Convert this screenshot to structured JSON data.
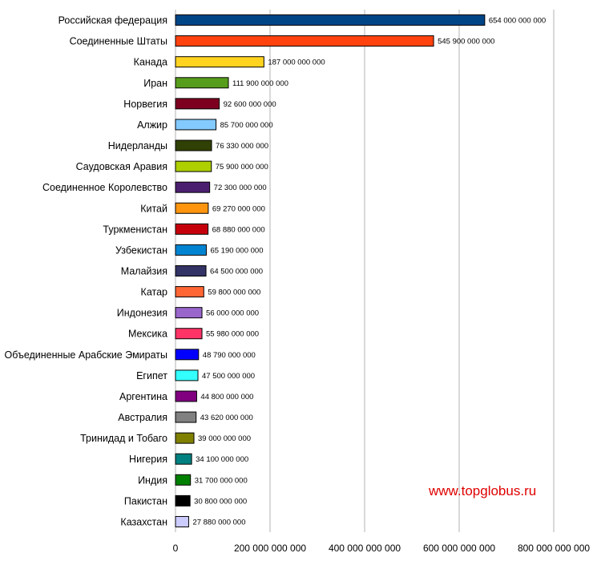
{
  "chart_data": {
    "type": "bar",
    "orientation": "horizontal",
    "title": "",
    "xlabel": "",
    "ylabel": "",
    "xlim": [
      0,
      800000000000
    ],
    "grid": "vertical",
    "legend": "none",
    "x_ticks": [
      "0",
      "200 000 000 000",
      "400 000 000 000",
      "600 000 000 000",
      "800 000 000 000"
    ],
    "categories": [
      "Российская федерация",
      "Соединенные Штаты",
      "Канада",
      "Иран",
      "Норвегия",
      "Алжир",
      "Нидерланды",
      "Саудовская Аравия",
      "Соединенное Королевство",
      "Китай",
      "Туркменистан",
      "Узбекистан",
      "Малайзия",
      "Катар",
      "Индонезия",
      "Мексика",
      "Объединенные Арабские Эмираты",
      "Египет",
      "Аргентина",
      "Австралия",
      "Тринидад и Тобаго",
      "Нигерия",
      "Индия",
      "Пакистан",
      "Казахстан"
    ],
    "values": [
      654000000000,
      545900000000,
      187000000000,
      111900000000,
      92600000000,
      85700000000,
      76330000000,
      75900000000,
      72300000000,
      69270000000,
      68880000000,
      65190000000,
      64500000000,
      59800000000,
      56000000000,
      55980000000,
      48790000000,
      47500000000,
      44800000000,
      43620000000,
      39000000000,
      34100000000,
      31700000000,
      30800000000,
      27880000000
    ],
    "value_labels": [
      "654 000 000 000",
      "545 900 000 000",
      "187 000 000 000",
      "111 900 000 000",
      "92 600 000 000",
      "85 700 000 000",
      "76 330 000 000",
      "75 900 000 000",
      "72 300 000 000",
      "69 270 000 000",
      "68 880 000 000",
      "65 190 000 000",
      "64 500 000 000",
      "59 800 000 000",
      "56 000 000 000",
      "55 980 000 000",
      "48 790 000 000",
      "47 500 000 000",
      "44 800 000 000",
      "43 620 000 000",
      "39 000 000 000",
      "34 100 000 000",
      "31 700 000 000",
      "30 800 000 000",
      "27 880 000 000"
    ],
    "colors": [
      "#004586",
      "#ff420e",
      "#ffd320",
      "#579d1c",
      "#7e0021",
      "#83caff",
      "#314004",
      "#aecf00",
      "#4b1f6f",
      "#ff950e",
      "#c5000b",
      "#0084d1",
      "#333366",
      "#ff6633",
      "#9966cc",
      "#ff3366",
      "#0000ff",
      "#33ffff",
      "#800080",
      "#808080",
      "#808000",
      "#008080",
      "#008000",
      "#000000",
      "#ccccff"
    ]
  },
  "watermark": "www.topglobus.ru"
}
